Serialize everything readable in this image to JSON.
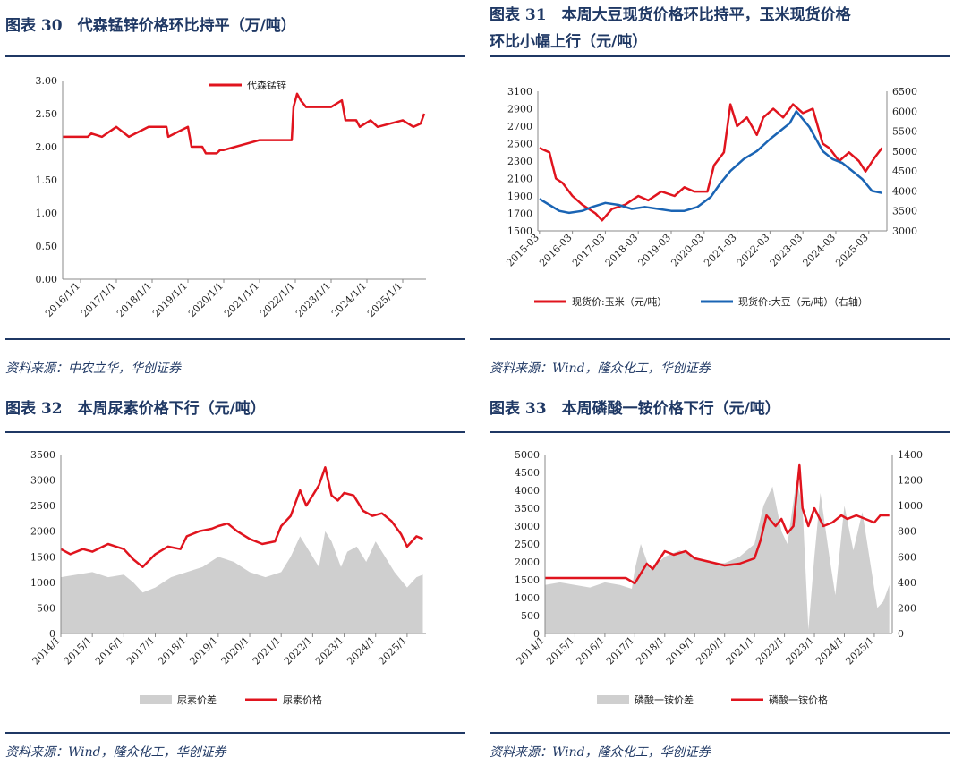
{
  "colors": {
    "red": "#e0141e",
    "blue": "#1a64b4",
    "gray": "#cfcfcf",
    "navy": "#1f3864"
  },
  "panels": [
    {
      "title": "图表 30　代森锰锌价格环比持平（万/吨）",
      "source": "资料来源：中农立华，华创证券",
      "chart_data": {
        "type": "line",
        "xlabels": [
          "2016/1/1",
          "2017/1/1",
          "2018/1/1",
          "2019/1/1",
          "2020/1/1",
          "2021/1/1",
          "2022/1/1",
          "2023/1/1",
          "2024/1/1",
          "2025/1/1"
        ],
        "yticks": [
          "3.00",
          "2.50",
          "2.00",
          "1.50",
          "1.00",
          "0.50",
          "0.00"
        ],
        "ylim": [
          0,
          3
        ],
        "legend_position": "top-center",
        "series": [
          {
            "name": "代森锰锌",
            "color": "red",
            "x": [
              2015.5,
              2016.2,
              2016.3,
              2016.6,
              2017.0,
              2017.35,
              2017.9,
              2018.4,
              2018.45,
              2019.0,
              2019.1,
              2019.4,
              2019.5,
              2019.8,
              2019.9,
              2020.0,
              2021.0,
              2021.9,
              2021.95,
              2022.05,
              2022.15,
              2022.3,
              2023.0,
              2023.3,
              2023.4,
              2023.7,
              2023.8,
              2024.1,
              2024.3,
              2025.0,
              2025.3,
              2025.5,
              2025.6
            ],
            "y": [
              2.15,
              2.15,
              2.2,
              2.15,
              2.3,
              2.15,
              2.3,
              2.3,
              2.15,
              2.3,
              2.0,
              2.0,
              1.9,
              1.9,
              1.95,
              1.95,
              2.1,
              2.1,
              2.6,
              2.8,
              2.7,
              2.6,
              2.6,
              2.7,
              2.4,
              2.4,
              2.3,
              2.4,
              2.3,
              2.4,
              2.3,
              2.35,
              2.5
            ]
          }
        ]
      }
    },
    {
      "title": "图表 31　本周大豆现货价格环比持平，玉米现货价格",
      "title2": "环比小幅上行（元/吨）",
      "source": "资料来源：Wind，隆众化工，华创证券",
      "chart_data": {
        "type": "line",
        "xlabels": [
          "2015-03",
          "2016-03",
          "2017-03",
          "2018-03",
          "2019-03",
          "2020-03",
          "2021-03",
          "2022-03",
          "2023-03",
          "2024-03",
          "2025-03"
        ],
        "yticks_left": [
          "3100",
          "2900",
          "2700",
          "2500",
          "2300",
          "2100",
          "1900",
          "1700",
          "1500"
        ],
        "yticks_right": [
          "6500",
          "6000",
          "5500",
          "5000",
          "4500",
          "4000",
          "3500",
          "3000"
        ],
        "ylim": [
          1500,
          3100
        ],
        "y2lim": [
          3000,
          6500
        ],
        "legend_position": "bottom",
        "series": [
          {
            "name": "现货价:玉米（元/吨）",
            "color": "red",
            "axis": "left",
            "x": [
              2015.2,
              2015.5,
              2015.7,
              2015.9,
              2016.2,
              2016.5,
              2016.9,
              2017.1,
              2017.4,
              2017.8,
              2018.2,
              2018.5,
              2018.9,
              2019.3,
              2019.6,
              2019.9,
              2020.3,
              2020.5,
              2020.8,
              2021.0,
              2021.2,
              2021.5,
              2021.8,
              2022.0,
              2022.3,
              2022.6,
              2022.9,
              2023.2,
              2023.5,
              2023.8,
              2024.0,
              2024.3,
              2024.6,
              2024.9,
              2025.1,
              2025.4,
              2025.6
            ],
            "y": [
              2450,
              2400,
              2100,
              2050,
              1900,
              1800,
              1700,
              1620,
              1750,
              1800,
              1900,
              1850,
              1950,
              1900,
              2000,
              1950,
              1950,
              2250,
              2400,
              2950,
              2700,
              2800,
              2600,
              2800,
              2900,
              2800,
              2950,
              2850,
              2900,
              2500,
              2450,
              2300,
              2400,
              2300,
              2180,
              2350,
              2450
            ]
          },
          {
            "name": "现货价:大豆（元/吨）（右轴）",
            "color": "blue",
            "axis": "right",
            "x": [
              2015.2,
              2015.5,
              2015.8,
              2016.1,
              2016.5,
              2016.8,
              2017.2,
              2017.6,
              2018.0,
              2018.4,
              2018.8,
              2019.2,
              2019.6,
              2020.0,
              2020.4,
              2020.7,
              2021.0,
              2021.4,
              2021.8,
              2022.2,
              2022.5,
              2022.8,
              2023.0,
              2023.4,
              2023.8,
              2024.1,
              2024.4,
              2024.7,
              2025.0,
              2025.3,
              2025.6
            ],
            "y": [
              3800,
              3650,
              3500,
              3450,
              3500,
              3600,
              3700,
              3650,
              3550,
              3600,
              3550,
              3500,
              3500,
              3600,
              3850,
              4200,
              4500,
              4800,
              5000,
              5300,
              5500,
              5700,
              6000,
              5600,
              5000,
              4800,
              4700,
              4500,
              4300,
              4000,
              3950
            ]
          }
        ]
      }
    },
    {
      "title": "图表 32　本周尿素价格下行（元/吨）",
      "source": "资料来源：Wind，隆众化工，华创证券",
      "chart_data": {
        "type": "area",
        "xlabels": [
          "2014/1",
          "2015/1",
          "2016/1",
          "2017/1",
          "2018/1",
          "2019/1",
          "2020/1",
          "2021/1",
          "2022/1",
          "2023/1",
          "2024/1",
          "2025/1"
        ],
        "yticks": [
          "3500",
          "3000",
          "2500",
          "2000",
          "1500",
          "1000",
          "500",
          "0"
        ],
        "ylim": [
          0,
          3500
        ],
        "legend_position": "bottom",
        "series": [
          {
            "name": "尿素价差",
            "color": "gray",
            "kind": "area",
            "x": [
              2014.0,
              2014.5,
              2015.0,
              2015.5,
              2016.0,
              2016.3,
              2016.6,
              2017.0,
              2017.5,
              2018.0,
              2018.5,
              2019.0,
              2019.5,
              2020.0,
              2020.5,
              2021.0,
              2021.3,
              2021.6,
              2021.9,
              2022.2,
              2022.4,
              2022.6,
              2022.9,
              2023.1,
              2023.4,
              2023.7,
              2024.0,
              2024.3,
              2024.6,
              2025.0,
              2025.3,
              2025.5
            ],
            "y": [
              1100,
              1150,
              1200,
              1100,
              1150,
              1000,
              800,
              900,
              1100,
              1200,
              1300,
              1500,
              1400,
              1200,
              1100,
              1200,
              1500,
              1900,
              1600,
              1300,
              2000,
              1800,
              1300,
              1600,
              1700,
              1400,
              1800,
              1500,
              1200,
              900,
              1100,
              1150
            ]
          },
          {
            "name": "尿素价格",
            "color": "red",
            "kind": "line",
            "x": [
              2014.0,
              2014.3,
              2014.7,
              2015.0,
              2015.5,
              2016.0,
              2016.3,
              2016.6,
              2017.0,
              2017.4,
              2017.8,
              2018.0,
              2018.4,
              2018.8,
              2019.0,
              2019.3,
              2019.6,
              2020.0,
              2020.4,
              2020.8,
              2021.0,
              2021.3,
              2021.6,
              2021.8,
              2022.0,
              2022.2,
              2022.4,
              2022.6,
              2022.8,
              2023.0,
              2023.3,
              2023.6,
              2023.9,
              2024.2,
              2024.5,
              2024.8,
              2025.0,
              2025.3,
              2025.5
            ],
            "y": [
              1650,
              1550,
              1650,
              1600,
              1750,
              1650,
              1450,
              1300,
              1550,
              1700,
              1650,
              1900,
              2000,
              2050,
              2100,
              2150,
              2000,
              1850,
              1750,
              1800,
              2100,
              2300,
              2800,
              2500,
              2700,
              2900,
              3250,
              2700,
              2600,
              2750,
              2700,
              2400,
              2300,
              2350,
              2200,
              1950,
              1700,
              1900,
              1850
            ]
          }
        ]
      }
    },
    {
      "title": "图表 33　本周磷酸一铵价格下行（元/吨）",
      "source": "资料来源：Wind，隆众化工，华创证券",
      "chart_data": {
        "type": "area",
        "xlabels": [
          "2014/1",
          "2015/1",
          "2016/1",
          "2017/1",
          "2018/1",
          "2019/1",
          "2020/1",
          "2021/1",
          "2022/1",
          "2023/1",
          "2024/1",
          "2025/1"
        ],
        "yticks_left": [
          "5000",
          "4500",
          "4000",
          "3500",
          "3000",
          "2500",
          "2000",
          "1500",
          "1000",
          "500",
          "0"
        ],
        "yticks_right": [
          "1400",
          "1200",
          "1000",
          "800",
          "600",
          "400",
          "200",
          "0"
        ],
        "ylim": [
          0,
          5000
        ],
        "y2lim": [
          0,
          1400
        ],
        "legend_position": "bottom",
        "series": [
          {
            "name": "磷酸一铵价差",
            "color": "gray",
            "kind": "area",
            "axis": "right",
            "x": [
              2014.0,
              2014.5,
              2015.0,
              2015.5,
              2016.0,
              2016.5,
              2016.9,
              2017.0,
              2017.2,
              2017.5,
              2018.0,
              2018.5,
              2019.0,
              2019.5,
              2020.0,
              2020.5,
              2021.0,
              2021.3,
              2021.6,
              2021.9,
              2022.1,
              2022.4,
              2022.6,
              2022.8,
              2023.0,
              2023.2,
              2023.5,
              2023.7,
              2024.0,
              2024.3,
              2024.6,
              2024.9,
              2025.1,
              2025.3,
              2025.5
            ],
            "y": [
              380,
              400,
              380,
              360,
              400,
              380,
              350,
              500,
              700,
              500,
              600,
              650,
              600,
              550,
              550,
              600,
              700,
              1000,
              1150,
              800,
              700,
              1200,
              1000,
              30,
              600,
              1100,
              600,
              300,
              1000,
              650,
              950,
              500,
              200,
              250,
              380
            ]
          },
          {
            "name": "磷酸一铵价格",
            "color": "red",
            "kind": "line",
            "axis": "left",
            "x": [
              2014.0,
              2015.0,
              2016.0,
              2016.7,
              2017.0,
              2017.4,
              2017.6,
              2018.0,
              2018.3,
              2018.7,
              2019.0,
              2019.5,
              2020.0,
              2020.5,
              2021.0,
              2021.2,
              2021.4,
              2021.7,
              2021.9,
              2022.1,
              2022.3,
              2022.5,
              2022.6,
              2022.8,
              2023.0,
              2023.3,
              2023.6,
              2023.9,
              2024.1,
              2024.4,
              2024.7,
              2025.0,
              2025.2,
              2025.5
            ],
            "y": [
              1550,
              1550,
              1550,
              1550,
              1400,
              1950,
              1800,
              2300,
              2200,
              2300,
              2100,
              2000,
              1900,
              1950,
              2100,
              2600,
              3300,
              3000,
              3200,
              2800,
              3000,
              4700,
              3500,
              3000,
              3500,
              3000,
              3100,
              3300,
              3200,
              3300,
              3200,
              3100,
              3300,
              3300
            ]
          }
        ]
      }
    }
  ]
}
